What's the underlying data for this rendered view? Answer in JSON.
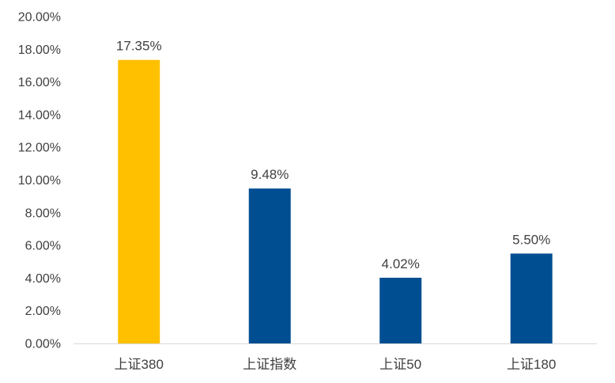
{
  "chart_data": {
    "type": "bar",
    "title": "",
    "xlabel": "",
    "ylabel": "",
    "categories": [
      "上证380",
      "上证指数",
      "上证50",
      "上证180"
    ],
    "values": [
      17.35,
      9.48,
      4.02,
      5.5
    ],
    "data_labels": [
      "17.35%",
      "9.48%",
      "4.02%",
      "5.50%"
    ],
    "ylim": [
      0,
      20
    ],
    "yticks": [
      0,
      2,
      4,
      6,
      8,
      10,
      12,
      14,
      16,
      18,
      20
    ],
    "ytick_labels": [
      "0.00%",
      "2.00%",
      "4.00%",
      "6.00%",
      "8.00%",
      "10.00%",
      "12.00%",
      "14.00%",
      "16.00%",
      "18.00%",
      "20.00%"
    ],
    "bar_colors": [
      "#FFC000",
      "#004E92",
      "#004E92",
      "#004E92"
    ],
    "axis_color": "#D9D9D9",
    "grid": false,
    "legend": "none"
  }
}
